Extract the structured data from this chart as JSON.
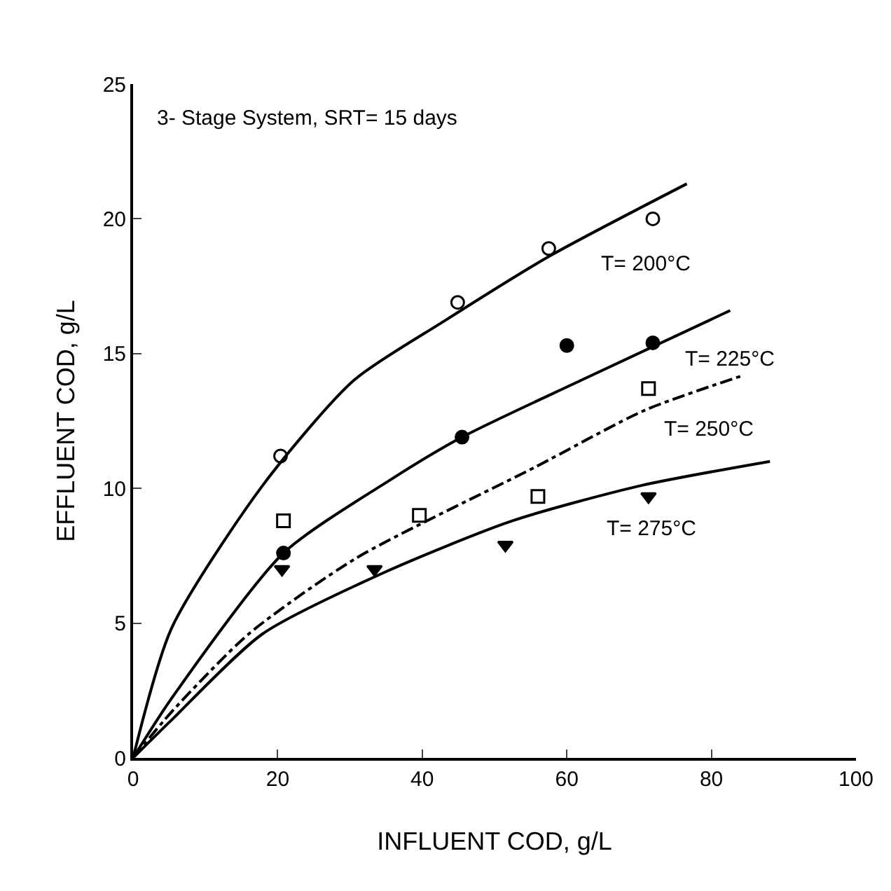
{
  "chart_data": {
    "type": "scatter",
    "xlabel": "INFLUENT COD, g/L",
    "ylabel": "EFFLUENT COD, g/L",
    "xlim": [
      0,
      100
    ],
    "ylim": [
      0,
      25
    ],
    "xticks": [
      0,
      20,
      40,
      60,
      80,
      100
    ],
    "yticks": [
      0,
      5,
      10,
      15,
      20,
      25
    ],
    "series": [
      {
        "marker": "circle-open",
        "color": "#000000",
        "x": [
          20.4,
          44.9,
          57.5,
          71.9
        ],
        "values": [
          11.2,
          16.9,
          18.9,
          20.0
        ]
      },
      {
        "marker": "circle",
        "color": "#000000",
        "x": [
          20.8,
          45.5,
          60,
          71.9
        ],
        "values": [
          7.6,
          11.9,
          15.3,
          15.4
        ]
      },
      {
        "marker": "square-open",
        "color": "#000000",
        "x": [
          20.8,
          39.6,
          56,
          71.3
        ],
        "values": [
          8.8,
          9.0,
          9.7,
          13.7
        ]
      },
      {
        "marker": "triangle-down",
        "color": "#000000",
        "x": [
          20.6,
          33.4,
          51.5,
          71.3
        ],
        "values": [
          7.0,
          7.0,
          7.9,
          9.7
        ]
      },
      {
        "type": "line",
        "line_style": "solid",
        "color": "#000000",
        "x": [
          0,
          5.3,
          17.9,
          30.5,
          43,
          57.5,
          76.6
        ],
        "values": [
          0,
          4.8,
          10.1,
          14.0,
          16.2,
          18.6,
          21.3
        ]
      },
      {
        "type": "line",
        "line_style": "solid",
        "color": "#000000",
        "x": [
          0,
          5.3,
          20.8,
          35.5,
          45.5,
          61.9,
          82.6
        ],
        "values": [
          0,
          2.2,
          7.6,
          10.3,
          11.9,
          14.0,
          16.6
        ]
      },
      {
        "type": "line",
        "line_style": "dashed",
        "color": "#000000",
        "x": [
          0,
          5.3,
          16,
          30.8,
          55.7,
          70.8,
          84.5
        ],
        "values": [
          0,
          1.7,
          4.6,
          7.4,
          10.8,
          12.9,
          14.2
        ]
      },
      {
        "type": "line",
        "line_style": "solid",
        "color": "#000000",
        "x": [
          0,
          5.3,
          17.9,
          34.9,
          52.5,
          70.2,
          88.1
        ],
        "values": [
          0,
          1.4,
          4.6,
          6.9,
          8.8,
          10.1,
          11.0
        ]
      }
    ],
    "annotations": [
      "3- Stage System, SRT= 15 days",
      "T= 200°C",
      "T= 225°C",
      "T= 250°C",
      "T= 275°C"
    ]
  }
}
